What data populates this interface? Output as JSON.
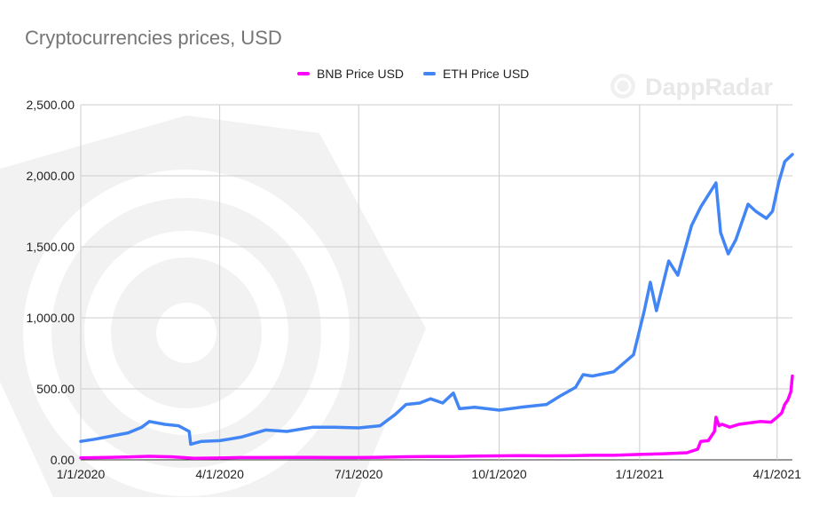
{
  "chart_data": {
    "type": "line",
    "title": "Cryptocurrencies prices, USD",
    "xlabel": "",
    "ylabel": "",
    "ylim": [
      0,
      2500
    ],
    "yticks": [
      "0.00",
      "500.00",
      "1,000.00",
      "1,500.00",
      "2,000.00",
      "2,500.00"
    ],
    "xticks": [
      "1/1/2020",
      "4/1/2020",
      "7/1/2020",
      "10/1/2020",
      "1/1/2021",
      "4/1/2021"
    ],
    "x_range": [
      "2020-01-01",
      "2021-04-11"
    ],
    "grid": true,
    "legend_position": "top",
    "series": [
      {
        "name": "BNB Price USD",
        "color": "#ff00ff",
        "x": [
          "2020-01-01",
          "2020-01-15",
          "2020-02-01",
          "2020-02-15",
          "2020-03-01",
          "2020-03-12",
          "2020-03-15",
          "2020-04-01",
          "2020-04-15",
          "2020-05-01",
          "2020-05-15",
          "2020-06-01",
          "2020-06-15",
          "2020-07-01",
          "2020-07-15",
          "2020-08-01",
          "2020-08-15",
          "2020-09-01",
          "2020-09-15",
          "2020-10-01",
          "2020-10-15",
          "2020-11-01",
          "2020-11-15",
          "2020-12-01",
          "2020-12-15",
          "2021-01-01",
          "2021-01-15",
          "2021-02-01",
          "2021-02-08",
          "2021-02-10",
          "2021-02-15",
          "2021-02-19",
          "2021-02-20",
          "2021-02-22",
          "2021-02-24",
          "2021-03-01",
          "2021-03-07",
          "2021-03-14",
          "2021-03-21",
          "2021-03-28",
          "2021-04-01",
          "2021-04-04",
          "2021-04-06",
          "2021-04-08",
          "2021-04-10",
          "2021-04-11"
        ],
        "y": [
          14,
          16,
          20,
          25,
          21,
          13,
          11,
          13,
          16,
          16,
          17,
          17,
          16,
          16,
          18,
          22,
          23,
          23,
          26,
          28,
          30,
          28,
          29,
          32,
          32,
          38,
          42,
          50,
          75,
          130,
          135,
          200,
          300,
          240,
          250,
          230,
          250,
          260,
          270,
          265,
          300,
          330,
          390,
          420,
          480,
          590
        ]
      },
      {
        "name": "ETH Price USD",
        "color": "#4285f4",
        "x": [
          "2020-01-01",
          "2020-01-10",
          "2020-01-20",
          "2020-02-01",
          "2020-02-10",
          "2020-02-15",
          "2020-02-25",
          "2020-03-05",
          "2020-03-12",
          "2020-03-13",
          "2020-03-20",
          "2020-04-01",
          "2020-04-15",
          "2020-05-01",
          "2020-05-15",
          "2020-06-01",
          "2020-06-15",
          "2020-07-01",
          "2020-07-15",
          "2020-07-25",
          "2020-08-01",
          "2020-08-10",
          "2020-08-17",
          "2020-08-25",
          "2020-09-01",
          "2020-09-05",
          "2020-09-15",
          "2020-10-01",
          "2020-10-15",
          "2020-11-01",
          "2020-11-10",
          "2020-11-20",
          "2020-11-25",
          "2020-12-01",
          "2020-12-15",
          "2020-12-28",
          "2021-01-04",
          "2021-01-08",
          "2021-01-12",
          "2021-01-20",
          "2021-01-26",
          "2021-02-04",
          "2021-02-10",
          "2021-02-20",
          "2021-02-23",
          "2021-02-28",
          "2021-03-05",
          "2021-03-13",
          "2021-03-18",
          "2021-03-25",
          "2021-03-29",
          "2021-04-02",
          "2021-04-06",
          "2021-04-11"
        ],
        "y": [
          130,
          145,
          165,
          190,
          230,
          270,
          250,
          240,
          200,
          110,
          130,
          135,
          160,
          210,
          200,
          230,
          230,
          225,
          240,
          320,
          390,
          400,
          430,
          400,
          470,
          360,
          370,
          350,
          370,
          390,
          450,
          510,
          600,
          590,
          620,
          740,
          1050,
          1250,
          1050,
          1400,
          1300,
          1650,
          1780,
          1950,
          1600,
          1450,
          1550,
          1800,
          1750,
          1700,
          1750,
          1950,
          2100,
          2150
        ]
      }
    ]
  },
  "watermark": "DappRadar"
}
